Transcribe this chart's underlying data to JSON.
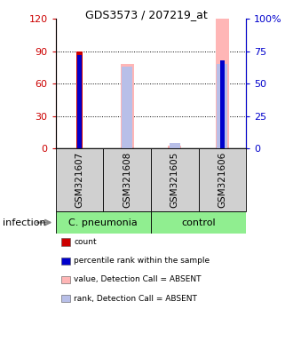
{
  "title": "GDS3573 / 207219_at",
  "samples": [
    "GSM321607",
    "GSM321608",
    "GSM321605",
    "GSM321606"
  ],
  "ylim_left": [
    0,
    120
  ],
  "ylim_right": [
    0,
    100
  ],
  "yticks_left": [
    0,
    30,
    60,
    90,
    120
  ],
  "yticks_right": [
    0,
    25,
    50,
    75,
    100
  ],
  "yticklabels_right": [
    "0",
    "25",
    "50",
    "75",
    "100%"
  ],
  "count_values": [
    90,
    0,
    0,
    0
  ],
  "percentile_values": [
    72,
    0,
    0,
    68
  ],
  "absent_value_values": [
    0,
    65,
    2,
    113
  ],
  "absent_rank_values": [
    0,
    63,
    4,
    65
  ],
  "count_color": "#cc0000",
  "percentile_color": "#0000cc",
  "absent_value_color": "#ffb6b6",
  "absent_rank_color": "#b8bfe8",
  "legend_items": [
    {
      "color": "#cc0000",
      "label": "count"
    },
    {
      "color": "#0000cc",
      "label": "percentile rank within the sample"
    },
    {
      "color": "#ffb6b6",
      "label": "value, Detection Call = ABSENT"
    },
    {
      "color": "#b8bfe8",
      "label": "rank, Detection Call = ABSENT"
    }
  ],
  "infection_label": "infection",
  "background_color": "#ffffff",
  "axis_color_left": "#cc0000",
  "axis_color_right": "#0000cc",
  "group_color": "#90ee90",
  "sample_box_color": "#d0d0d0",
  "grid_lines": [
    30,
    60,
    90
  ]
}
